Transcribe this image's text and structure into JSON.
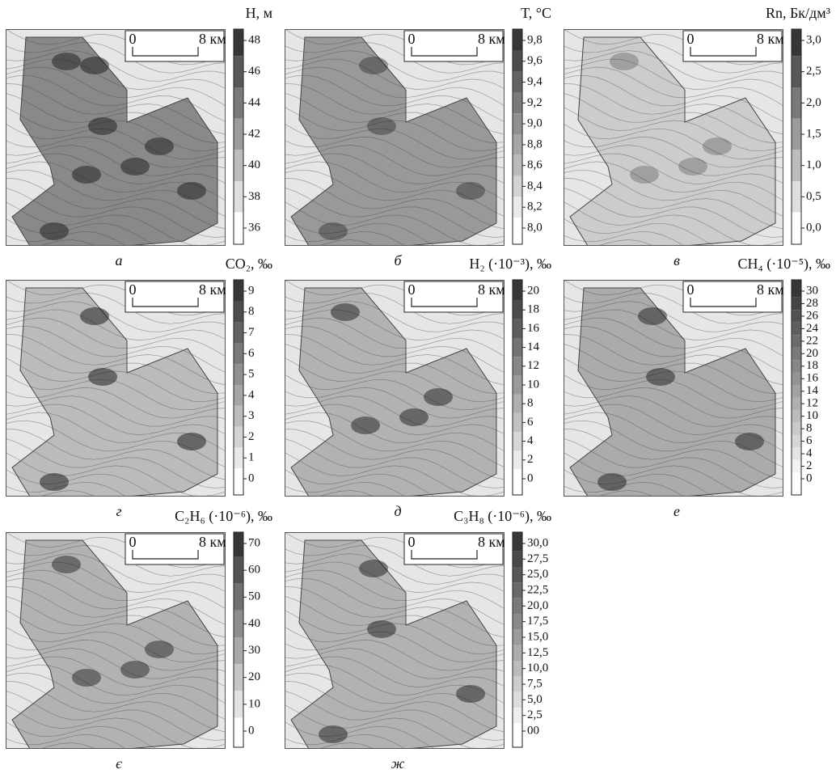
{
  "figure": {
    "panels": [
      {
        "title": "H, м",
        "label": "а",
        "scale": {
          "start": "0",
          "end": "8 км"
        },
        "colorbar": [
          "48",
          "46",
          "44",
          "42",
          "40",
          "38",
          "36"
        ]
      },
      {
        "title": "T, °C",
        "label": "б",
        "scale": {
          "start": "0",
          "end": "8 км"
        },
        "colorbar": [
          "9,8",
          "9,6",
          "9,4",
          "9,2",
          "9,0",
          "8,8",
          "8,6",
          "8,4",
          "8,2",
          "8,0"
        ]
      },
      {
        "title": "Rn, Бк/дм³",
        "label": "в",
        "scale": {
          "start": "0",
          "end": "8 км"
        },
        "colorbar": [
          "3,0",
          "2,5",
          "2,0",
          "1,5",
          "1,0",
          "0,5",
          "0,0"
        ]
      },
      {
        "title": "CO₂, ‰",
        "label": "г",
        "scale": {
          "start": "0",
          "end": "8 км"
        },
        "colorbar": [
          "9",
          "8",
          "7",
          "6",
          "5",
          "4",
          "3",
          "2",
          "1",
          "0"
        ]
      },
      {
        "title": "H₂ (·10⁻³), ‰",
        "label": "д",
        "scale": {
          "start": "0",
          "end": "8 км"
        },
        "colorbar": [
          "20",
          "18",
          "16",
          "14",
          "12",
          "10",
          "8",
          "6",
          "4",
          "2",
          "0"
        ]
      },
      {
        "title": "CH₄ (·10⁻⁵), ‰",
        "label": "е",
        "scale": {
          "start": "0",
          "end": "8 км"
        },
        "colorbar": [
          "30",
          "28",
          "26",
          "24",
          "22",
          "20",
          "18",
          "16",
          "14",
          "12",
          "10",
          "8",
          "6",
          "4",
          "2",
          "0"
        ]
      },
      {
        "title": "C₂H₆ (·10⁻⁶), ‰",
        "label": "є",
        "scale": {
          "start": "0",
          "end": "8 км"
        },
        "colorbar": [
          "70",
          "60",
          "50",
          "40",
          "30",
          "20",
          "10",
          "0"
        ]
      },
      {
        "title": "C₃H₈ (·10⁻⁶), ‰",
        "label": "ж",
        "scale": {
          "start": "0",
          "end": "8 км"
        },
        "colorbar": [
          "30,0",
          "27,5",
          "25,0",
          "22,5",
          "20,0",
          "17,5",
          "15,0",
          "12,5",
          "10,0",
          "7,5",
          "5,0",
          "2,5",
          "00"
        ]
      }
    ]
  }
}
